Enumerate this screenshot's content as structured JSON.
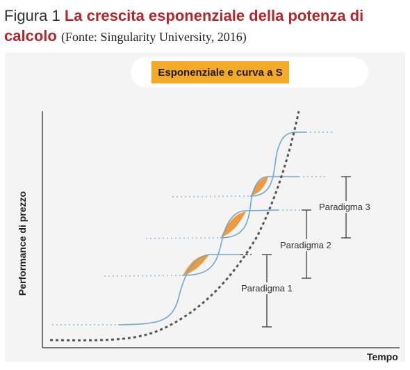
{
  "figure": {
    "number_label": "Figura 1",
    "title": "La crescita esponenziale della potenza di calcolo",
    "source": "(Fonte: Singularity University, 2016)"
  },
  "diagram": {
    "tag_label": "Esponenziale e curva a S",
    "y_axis_label": "Performance di prezzo",
    "x_axis_label": "Tempo",
    "paradigms": [
      "Paradigma 1",
      "Paradigma 2",
      "Paradigma 3"
    ]
  },
  "colors": {
    "title_red": "#b2282a",
    "tag_yellow": "#f4a927",
    "s_curve_blue": "#6fa8cf",
    "overlap_orange": "#ef9a3d",
    "exponential_dotted": "#555555"
  }
}
